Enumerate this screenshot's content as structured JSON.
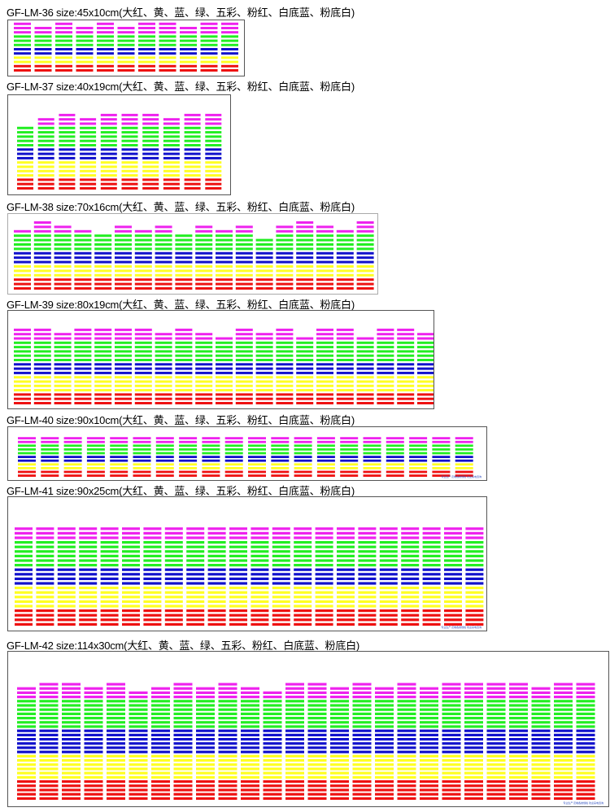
{
  "colors": {
    "pink": "#ee22ee",
    "green": "#22ee22",
    "blue": "#1111cc",
    "yellow": "#ffff22",
    "red": "#ee1111"
  },
  "sections": [
    {
      "id": "gf-lm-36",
      "title": "GF-LM-36 size:45x10cm(大红、黄、蓝、绿、五彩、粉红、白底蓝、粉底白)",
      "bands": [
        [
          "pink",
          3
        ],
        [
          "green",
          3
        ],
        [
          "blue",
          2
        ],
        [
          "yellow",
          2
        ],
        [
          "red",
          2
        ]
      ],
      "levels": [
        12,
        11,
        13,
        11,
        13,
        11,
        12,
        13,
        11,
        13,
        12
      ]
    },
    {
      "id": "gf-lm-37",
      "title": "GF-LM-37 size:40x19cm(大红、黄、蓝、绿、五彩、粉红、白底蓝、粉底白)",
      "bands": [
        [
          "pink",
          3
        ],
        [
          "green",
          5
        ],
        [
          "blue",
          3
        ],
        [
          "yellow",
          4
        ],
        [
          "red",
          3
        ]
      ],
      "levels": [
        15,
        17,
        18,
        17,
        18,
        19,
        18,
        17,
        19,
        18
      ]
    },
    {
      "id": "gf-lm-38",
      "title": "GF-LM-38 size:70x16cm(大红、黄、蓝、绿、五彩、粉红、白底蓝、粉底白)",
      "bands": [
        [
          "pink",
          3
        ],
        [
          "green",
          4
        ],
        [
          "blue",
          3
        ],
        [
          "yellow",
          3
        ],
        [
          "red",
          3
        ]
      ],
      "levels": [
        14,
        16,
        15,
        14,
        13,
        15,
        14,
        15,
        13,
        15,
        14,
        15,
        12,
        15,
        16,
        15,
        14,
        16
      ]
    },
    {
      "id": "gf-lm-39",
      "title": "GF-LM-39 size:80x19cm(大红、黄、蓝、绿、五彩、粉红、白底蓝、粉底白)",
      "bands": [
        [
          "pink",
          3
        ],
        [
          "green",
          5
        ],
        [
          "blue",
          3
        ],
        [
          "yellow",
          4
        ],
        [
          "red",
          3
        ]
      ],
      "levels": [
        18,
        19,
        17,
        18,
        18,
        19,
        18,
        17,
        18,
        17,
        16,
        18,
        17,
        18,
        16,
        19,
        18,
        16,
        19,
        18,
        17
      ]
    },
    {
      "id": "gf-lm-40",
      "title": "GF-LM-40 size:90x10cm(大红、黄、蓝、绿、五彩、粉红、白底蓝、粉底白)",
      "bands": [
        [
          "pink",
          3
        ],
        [
          "green",
          3
        ],
        [
          "blue",
          2
        ],
        [
          "yellow",
          2
        ],
        [
          "red",
          2
        ]
      ],
      "levels": [
        11,
        11,
        11,
        11,
        11,
        11,
        11,
        11,
        11,
        11,
        11,
        11,
        11,
        11,
        11,
        11,
        11,
        11,
        11,
        11
      ],
      "note": "专业生产 定制各类规格 欢迎来电咨询"
    },
    {
      "id": "gf-lm-41",
      "title": "GF-LM-41 size:90x25cm(大红、黄、蓝、绿、五彩、粉红、白底蓝、粉底白)",
      "bands": [
        [
          "pink",
          3
        ],
        [
          "green",
          6
        ],
        [
          "blue",
          4
        ],
        [
          "yellow",
          5
        ],
        [
          "red",
          4
        ]
      ],
      "levels": [
        25,
        24,
        25,
        24,
        25,
        24,
        25,
        24,
        25,
        26,
        25,
        25,
        25,
        25,
        24,
        25,
        25,
        24,
        25,
        24,
        26,
        25
      ],
      "note": "专业生产 定制各类规格 欢迎来电咨询"
    },
    {
      "id": "gf-lm-42",
      "title": "GF-LM-42 size:114x30cm(大红、黄、蓝、绿、五彩、粉红、白底蓝、粉底白)",
      "bands": [
        [
          "pink",
          4
        ],
        [
          "green",
          7
        ],
        [
          "blue",
          6
        ],
        [
          "yellow",
          6
        ],
        [
          "red",
          5
        ]
      ],
      "levels": [
        27,
        29,
        28,
        27,
        28,
        26,
        27,
        28,
        27,
        28,
        27,
        26,
        28,
        29,
        27,
        28,
        27,
        28,
        27,
        29,
        28,
        28,
        28,
        27,
        29,
        28
      ],
      "note": "专业生产 定制各类规格 欢迎来电咨询"
    }
  ]
}
